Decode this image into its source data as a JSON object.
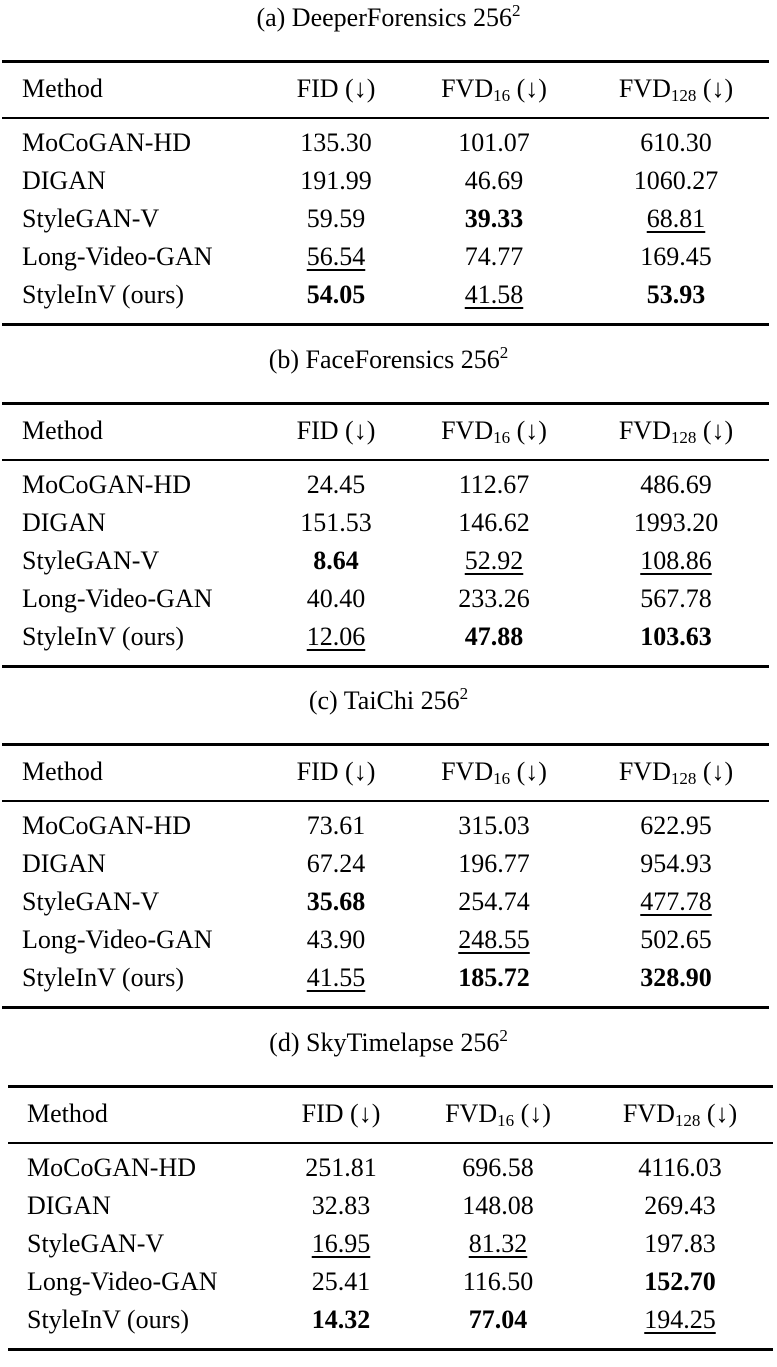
{
  "columns": {
    "method": "Method",
    "fid": "FID (↓)",
    "fvd16_main": "FVD",
    "fvd16_sub": "16",
    "fvd128_main": "FVD",
    "fvd128_sub": "128",
    "fvd_arrow": "(↓)"
  },
  "tables": [
    {
      "caption": "(a) DeeperForensics 256",
      "caption_sup": "2",
      "rows": [
        {
          "method": "MoCoGAN-HD",
          "fid": "135.30",
          "fvd16": "101.07",
          "fvd128": "610.30",
          "fid_style": "",
          "fvd16_style": "",
          "fvd128_style": ""
        },
        {
          "method": "DIGAN",
          "fid": "191.99",
          "fvd16": "46.69",
          "fvd128": "1060.27",
          "fid_style": "",
          "fvd16_style": "",
          "fvd128_style": ""
        },
        {
          "method": "StyleGAN-V",
          "fid": "59.59",
          "fvd16": "39.33",
          "fvd128": "68.81",
          "fid_style": "",
          "fvd16_style": "bold",
          "fvd128_style": "ul"
        },
        {
          "method": "Long-Video-GAN",
          "fid": "56.54",
          "fvd16": "74.77",
          "fvd128": "169.45",
          "fid_style": "ul",
          "fvd16_style": "",
          "fvd128_style": ""
        },
        {
          "method": "StyleInV (ours)",
          "fid": "54.05",
          "fvd16": "41.58",
          "fvd128": "53.93",
          "fid_style": "bold",
          "fvd16_style": "ul",
          "fvd128_style": "bold"
        }
      ]
    },
    {
      "caption": "(b) FaceForensics 256",
      "caption_sup": "2",
      "rows": [
        {
          "method": "MoCoGAN-HD",
          "fid": "24.45",
          "fvd16": "112.67",
          "fvd128": "486.69",
          "fid_style": "",
          "fvd16_style": "",
          "fvd128_style": ""
        },
        {
          "method": "DIGAN",
          "fid": "151.53",
          "fvd16": "146.62",
          "fvd128": "1993.20",
          "fid_style": "",
          "fvd16_style": "",
          "fvd128_style": ""
        },
        {
          "method": "StyleGAN-V",
          "fid": "8.64",
          "fvd16": "52.92",
          "fvd128": "108.86",
          "fid_style": "bold",
          "fvd16_style": "ul",
          "fvd128_style": "ul"
        },
        {
          "method": "Long-Video-GAN",
          "fid": "40.40",
          "fvd16": "233.26",
          "fvd128": "567.78",
          "fid_style": "",
          "fvd16_style": "",
          "fvd128_style": ""
        },
        {
          "method": "StyleInV (ours)",
          "fid": "12.06",
          "fvd16": "47.88",
          "fvd128": "103.63",
          "fid_style": "ul",
          "fvd16_style": "bold",
          "fvd128_style": "bold"
        }
      ]
    },
    {
      "caption": "(c) TaiChi 256",
      "caption_sup": "2",
      "rows": [
        {
          "method": "MoCoGAN-HD",
          "fid": "73.61",
          "fvd16": "315.03",
          "fvd128": "622.95",
          "fid_style": "",
          "fvd16_style": "",
          "fvd128_style": ""
        },
        {
          "method": "DIGAN",
          "fid": "67.24",
          "fvd16": "196.77",
          "fvd128": "954.93",
          "fid_style": "",
          "fvd16_style": "",
          "fvd128_style": ""
        },
        {
          "method": "StyleGAN-V",
          "fid": "35.68",
          "fvd16": "254.74",
          "fvd128": "477.78",
          "fid_style": "bold",
          "fvd16_style": "",
          "fvd128_style": "ul"
        },
        {
          "method": "Long-Video-GAN",
          "fid": "43.90",
          "fvd16": "248.55",
          "fvd128": "502.65",
          "fid_style": "",
          "fvd16_style": "ul",
          "fvd128_style": ""
        },
        {
          "method": "StyleInV (ours)",
          "fid": "41.55",
          "fvd16": "185.72",
          "fvd128": "328.90",
          "fid_style": "ul",
          "fvd16_style": "bold",
          "fvd128_style": "bold"
        }
      ]
    },
    {
      "caption": "(d) SkyTimelapse 256",
      "caption_sup": "2",
      "rows": [
        {
          "method": "MoCoGAN-HD",
          "fid": "251.81",
          "fvd16": "696.58",
          "fvd128": "4116.03",
          "fid_style": "",
          "fvd16_style": "",
          "fvd128_style": ""
        },
        {
          "method": "DIGAN",
          "fid": "32.83",
          "fvd16": "148.08",
          "fvd128": "269.43",
          "fid_style": "",
          "fvd16_style": "",
          "fvd128_style": ""
        },
        {
          "method": "StyleGAN-V",
          "fid": "16.95",
          "fvd16": "81.32",
          "fvd128": "197.83",
          "fid_style": "ul",
          "fvd16_style": "ul",
          "fvd128_style": ""
        },
        {
          "method": "Long-Video-GAN",
          "fid": "25.41",
          "fvd16": "116.50",
          "fvd128": "152.70",
          "fid_style": "",
          "fvd16_style": "",
          "fvd128_style": "bold"
        },
        {
          "method": "StyleInV (ours)",
          "fid": "14.32",
          "fvd16": "77.04",
          "fvd128": "194.25",
          "fid_style": "bold",
          "fvd16_style": "bold",
          "fvd128_style": "ul"
        }
      ]
    }
  ]
}
